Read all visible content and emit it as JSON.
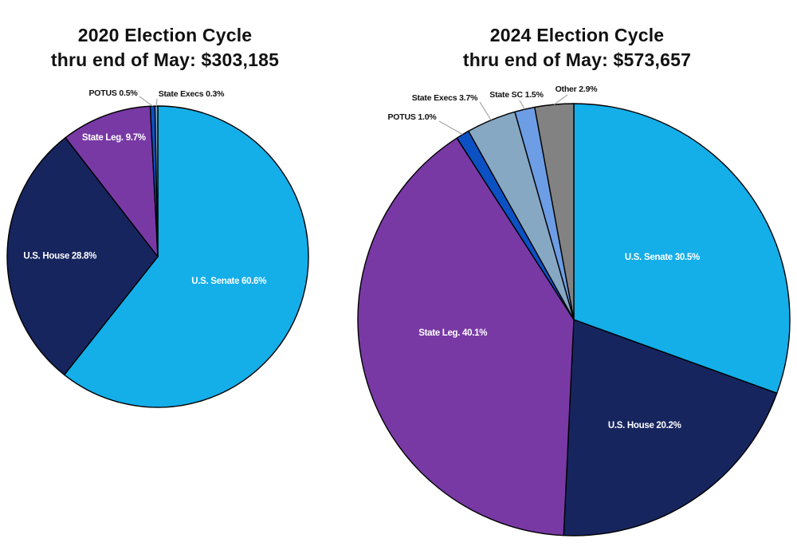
{
  "page": {
    "background": "#ffffff",
    "leader_line_color": "#a8a8a8",
    "slice_outline_color": "#000000"
  },
  "chart_data": [
    {
      "type": "pie",
      "title_line1": "2020 Election Cycle",
      "title_line2": "thru end of May: $303,185",
      "total": "$303,185",
      "legend_position": "none",
      "slices": [
        {
          "label": "U.S. Senate",
          "pct": 60.6,
          "display": "U.S. Senate 60.6%",
          "color": "#14AEE9"
        },
        {
          "label": "U.S. House",
          "pct": 28.8,
          "display": "U.S. House 28.8%",
          "color": "#17255F"
        },
        {
          "label": "State Leg.",
          "pct": 9.7,
          "display": "State Leg. 9.7%",
          "color": "#7839A5"
        },
        {
          "label": "POTUS",
          "pct": 0.5,
          "display": "POTUS 0.5%",
          "color": "#0C51C3"
        },
        {
          "label": "State Execs",
          "pct": 0.3,
          "display": "State Execs 0.3%",
          "color": "#86A8C3"
        }
      ]
    },
    {
      "type": "pie",
      "title_line1": "2024 Election Cycle",
      "title_line2": "thru end of May: $573,657",
      "total": "$573,657",
      "legend_position": "none",
      "slices": [
        {
          "label": "U.S. Senate",
          "pct": 30.5,
          "display": "U.S. Senate 30.5%",
          "color": "#14AEE9"
        },
        {
          "label": "U.S. House",
          "pct": 20.2,
          "display": "U.S. House 20.2%",
          "color": "#17255F"
        },
        {
          "label": "State Leg.",
          "pct": 40.1,
          "display": "State Leg. 40.1%",
          "color": "#7839A5"
        },
        {
          "label": "POTUS",
          "pct": 1.0,
          "display": "POTUS 1.0%",
          "color": "#0C51C3"
        },
        {
          "label": "State Execs",
          "pct": 3.7,
          "display": "State Execs 3.7%",
          "color": "#86A8C3"
        },
        {
          "label": "State SC",
          "pct": 1.5,
          "display": "State SC 1.5%",
          "color": "#6D9DE4"
        },
        {
          "label": "Other",
          "pct": 2.9,
          "display": "Other 2.9%",
          "color": "#828282"
        }
      ]
    }
  ]
}
